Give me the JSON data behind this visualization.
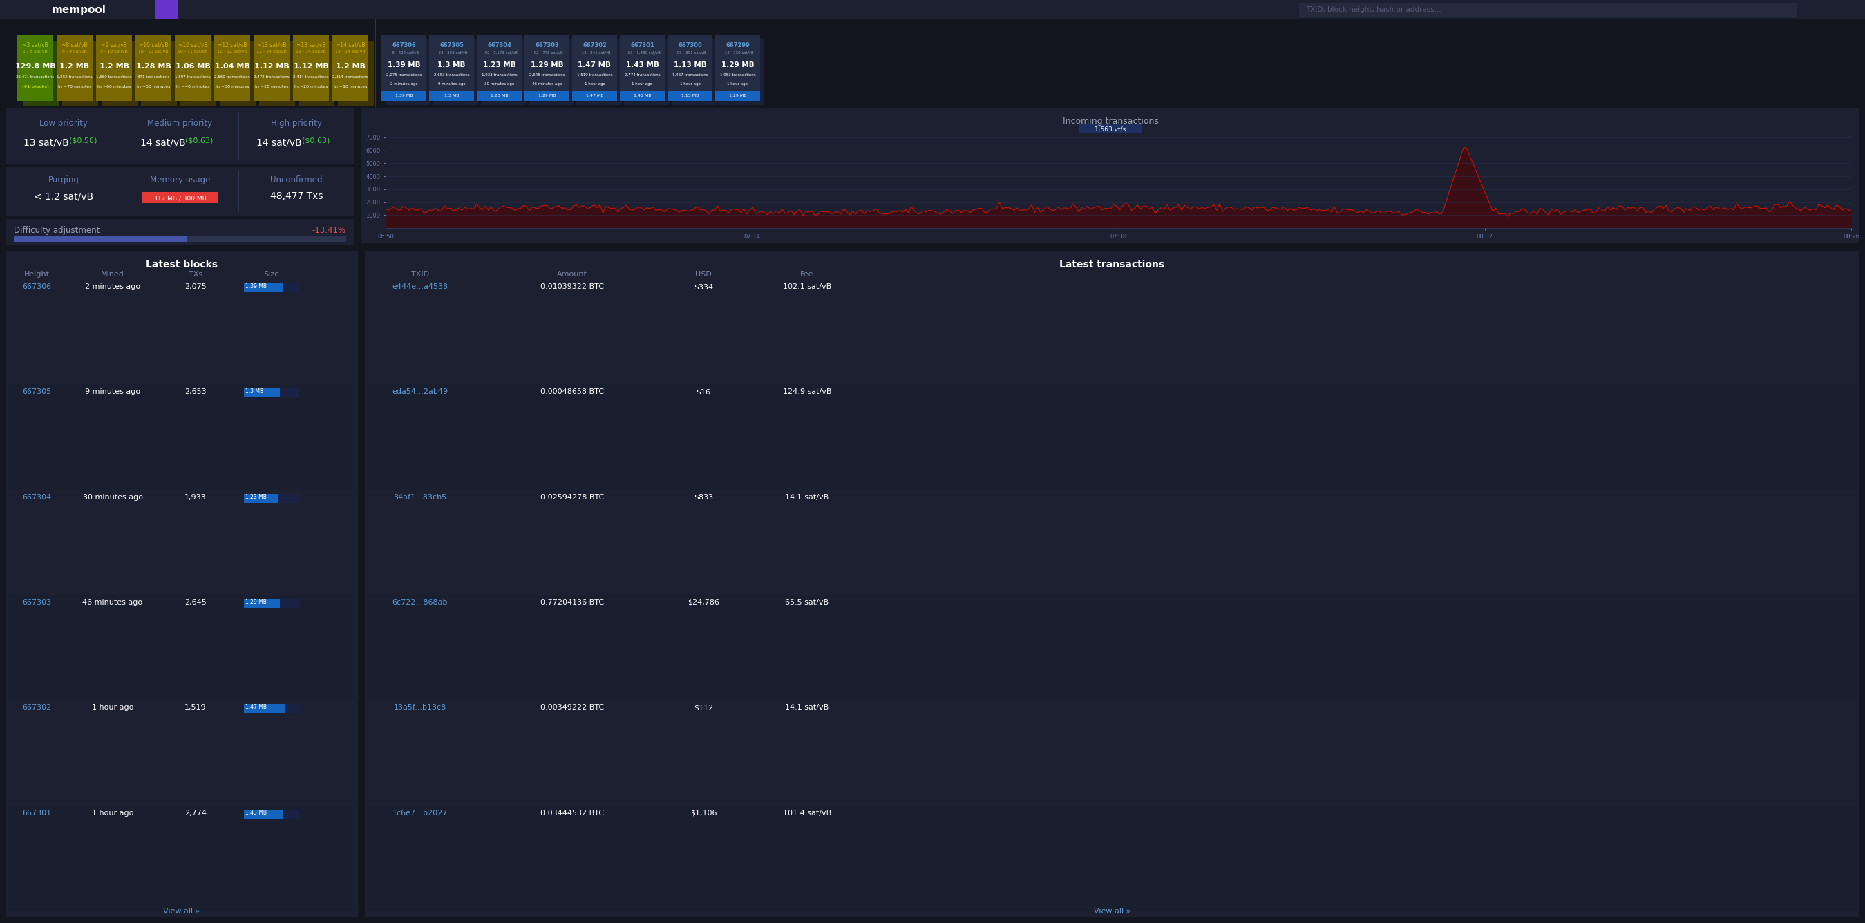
{
  "bg_color": "#13161f",
  "panel_bg": "#1c2030",
  "nav_bg": "#1c2030",
  "nav_highlight": "#6633cc",
  "mempool_blocks": [
    {
      "sat_rate": "~3 sat/vB",
      "range": "1 - 8 sat/vB",
      "size": "129.8 MB",
      "txs": "35,471 transactions",
      "eta": "(91 blocks)",
      "color": "#4a7c00",
      "shadow_color": "#2a4500",
      "rate_color": "#a8d000",
      "range_color": "#a8d000",
      "eta_color": "#a8d000",
      "is_green": true
    },
    {
      "sat_rate": "~8 sat/vB",
      "range": "8 - 9 sat/vB",
      "size": "1.2 MB",
      "txs": "1,252 transactions",
      "eta": "In ~70 minutes",
      "color": "#7a6800",
      "shadow_color": "#3d3400",
      "rate_color": "#d4b000",
      "range_color": "#d4b000",
      "eta_color": "#ffffff",
      "is_green": false
    },
    {
      "sat_rate": "~9 sat/vB",
      "range": "9 - 10 sat/vB",
      "size": "1.2 MB",
      "txs": "1,680 transactions",
      "eta": "In ~60 minutes",
      "color": "#7a6800",
      "shadow_color": "#3d3400",
      "rate_color": "#d4b000",
      "range_color": "#d4b000",
      "eta_color": "#ffffff",
      "is_green": false
    },
    {
      "sat_rate": "~10 sat/vB",
      "range": "10 - 10 sat/vB",
      "size": "1.28 MB",
      "txs": "871 transactions",
      "eta": "In ~50 minutes",
      "color": "#7a6800",
      "shadow_color": "#3d3400",
      "rate_color": "#d4b000",
      "range_color": "#d4b000",
      "eta_color": "#ffffff",
      "is_green": false
    },
    {
      "sat_rate": "~10 sat/vB",
      "range": "10 - 11 sat/vB",
      "size": "1.06 MB",
      "txs": "1,597 transactions",
      "eta": "In ~40 minutes",
      "color": "#7a6800",
      "shadow_color": "#3d3400",
      "rate_color": "#d4b000",
      "range_color": "#d4b000",
      "eta_color": "#ffffff",
      "is_green": false
    },
    {
      "sat_rate": "~12 sat/vB",
      "range": "11 - 12 sat/vB",
      "size": "1.04 MB",
      "txs": "2,560 transactions",
      "eta": "In ~30 minutes",
      "color": "#7a6800",
      "shadow_color": "#3d3400",
      "rate_color": "#d4b000",
      "range_color": "#d4b000",
      "eta_color": "#ffffff",
      "is_green": false
    },
    {
      "sat_rate": "~13 sat/vB",
      "range": "12 - 14 sat/vB",
      "size": "1.12 MB",
      "txs": "2,472 transactions",
      "eta": "In ~20 minutes",
      "color": "#7a6800",
      "shadow_color": "#3d3400",
      "rate_color": "#d4b000",
      "range_color": "#d4b000",
      "eta_color": "#ffffff",
      "is_green": false
    },
    {
      "sat_rate": "~13 sat/vB",
      "range": "12 - 14 sat/vB",
      "size": "1.12 MB",
      "txs": "2,414 transactions",
      "eta": "In ~20 minutes",
      "color": "#7a6800",
      "shadow_color": "#3d3400",
      "rate_color": "#d4b000",
      "range_color": "#d4b000",
      "eta_color": "#ffffff",
      "is_green": false
    },
    {
      "sat_rate": "~14 sat/vB",
      "range": "13 - 14 sat/vB",
      "size": "1.2 MB",
      "txs": "2,314 transactions",
      "eta": "In ~10 minutes",
      "color": "#7a6800",
      "shadow_color": "#3d3400",
      "rate_color": "#d4b000",
      "range_color": "#d4b000",
      "eta_color": "#ffffff",
      "is_green": false
    }
  ],
  "right_blocks": [
    {
      "block_id": "667306",
      "range": "~5 - 422 sat/vB",
      "size": "1.39 MB",
      "txs": "2,075 transactions",
      "eta": "2 minutes ago",
      "bar_label": "1.39 MB"
    },
    {
      "block_id": "667305",
      "range": "~53 - 358 sat/vB",
      "size": "1.3 MB",
      "txs": "2,653 transactions",
      "eta": "9 minutes ago",
      "bar_label": "1.3 MB"
    },
    {
      "block_id": "667304",
      "range": "~92 - 1,573 sat/vB",
      "size": "1.23 MB",
      "txs": "1,933 transactions",
      "eta": "30 minutes ago",
      "bar_label": "1.23 MB"
    },
    {
      "block_id": "667303",
      "range": "~92 - 775 sat/vB",
      "size": "1.29 MB",
      "txs": "2,645 transactions",
      "eta": "46 minutes ago",
      "bar_label": "1.29 MB"
    },
    {
      "block_id": "667302",
      "range": "~13 - 241 sat/vB",
      "size": "1.47 MB",
      "txs": "1,519 transactions",
      "eta": "1 hour ago",
      "bar_label": "1.47 MB"
    },
    {
      "block_id": "667301",
      "range": "~63 - 1,880 sat/vB",
      "size": "1.43 MB",
      "txs": "2,774 transactions",
      "eta": "1 hour ago",
      "bar_label": "1.43 MB"
    },
    {
      "block_id": "667300",
      "range": "~93 - 391 sat/vB",
      "size": "1.13 MB",
      "txs": "1,467 transactions",
      "eta": "1 hour ago",
      "bar_label": "1.13 MB"
    },
    {
      "block_id": "667299",
      "range": "~14 - 730 sat/vB",
      "size": "1.29 MB",
      "txs": "1,953 transactions",
      "eta": "1 hour ago",
      "bar_label": "1.29 MB"
    }
  ],
  "fee_sections": [
    {
      "label": "Low priority",
      "value": "13 sat/vB",
      "usd": "$0.58"
    },
    {
      "label": "Medium priority",
      "value": "14 sat/vB",
      "usd": "$0.63"
    },
    {
      "label": "High priority",
      "value": "14 sat/vB",
      "usd": "$0.63"
    }
  ],
  "purging": "< 1.2 sat/vB",
  "memory_usage_label": "317 MB / 300 MB",
  "memory_bar_color": "#e53935",
  "unconfirmed": "48,477 Txs",
  "difficulty_label": "Difficulty adjustment",
  "difficulty_value": "-13.41%",
  "difficulty_bar_pct": 0.52,
  "incoming": {
    "title": "Incoming transactions",
    "rate": "1,563 vt/s",
    "times": [
      "06:50",
      "07:14",
      "07:38",
      "08:02",
      "08:26"
    ],
    "line_color": "#cc1100",
    "fill_color": "#550000"
  },
  "latest_blocks_title": "Latest blocks",
  "lb_rows": [
    [
      "667306",
      "2 minutes ago",
      "2,075",
      1.39,
      "1.39 MB"
    ],
    [
      "667305",
      "9 minutes ago",
      "2,653",
      1.3,
      "1.3 MB"
    ],
    [
      "667304",
      "30 minutes ago",
      "1,933",
      1.23,
      "1.23 MB"
    ],
    [
      "667303",
      "46 minutes ago",
      "2,645",
      1.29,
      "1.29 MB"
    ],
    [
      "667302",
      "1 hour ago",
      "1,519",
      1.47,
      "1.47 MB"
    ],
    [
      "667301",
      "1 hour ago",
      "2,774",
      1.43,
      "1.43 MB"
    ]
  ],
  "latest_tx_title": "Latest transactions",
  "lt_rows": [
    [
      "e444e...a4538",
      "0.01039322 BTC",
      "$334",
      "102.1 sat/vB"
    ],
    [
      "eda54...2ab49",
      "0.00048658 BTC",
      "$16",
      "124.9 sat/vB"
    ],
    [
      "34af1...83cb5",
      "0.02594278 BTC",
      "$833",
      "14.1 sat/vB"
    ],
    [
      "6c722...868ab",
      "0.77204136 BTC",
      "$24,786",
      "65.5 sat/vB"
    ],
    [
      "13a5f...b13c8",
      "0.00349222 BTC",
      "$112",
      "14.1 sat/vB"
    ],
    [
      "1c6e7...b2027",
      "0.03444532 BTC",
      "$1,106",
      "101.4 sat/vB"
    ]
  ],
  "bar_color": "#1565c0",
  "bar_max": 2.0,
  "link_color": "#5b9bd5",
  "header_color": "#7986a8",
  "text_color": "#ffffff",
  "dim_color": "#9aa0b8"
}
